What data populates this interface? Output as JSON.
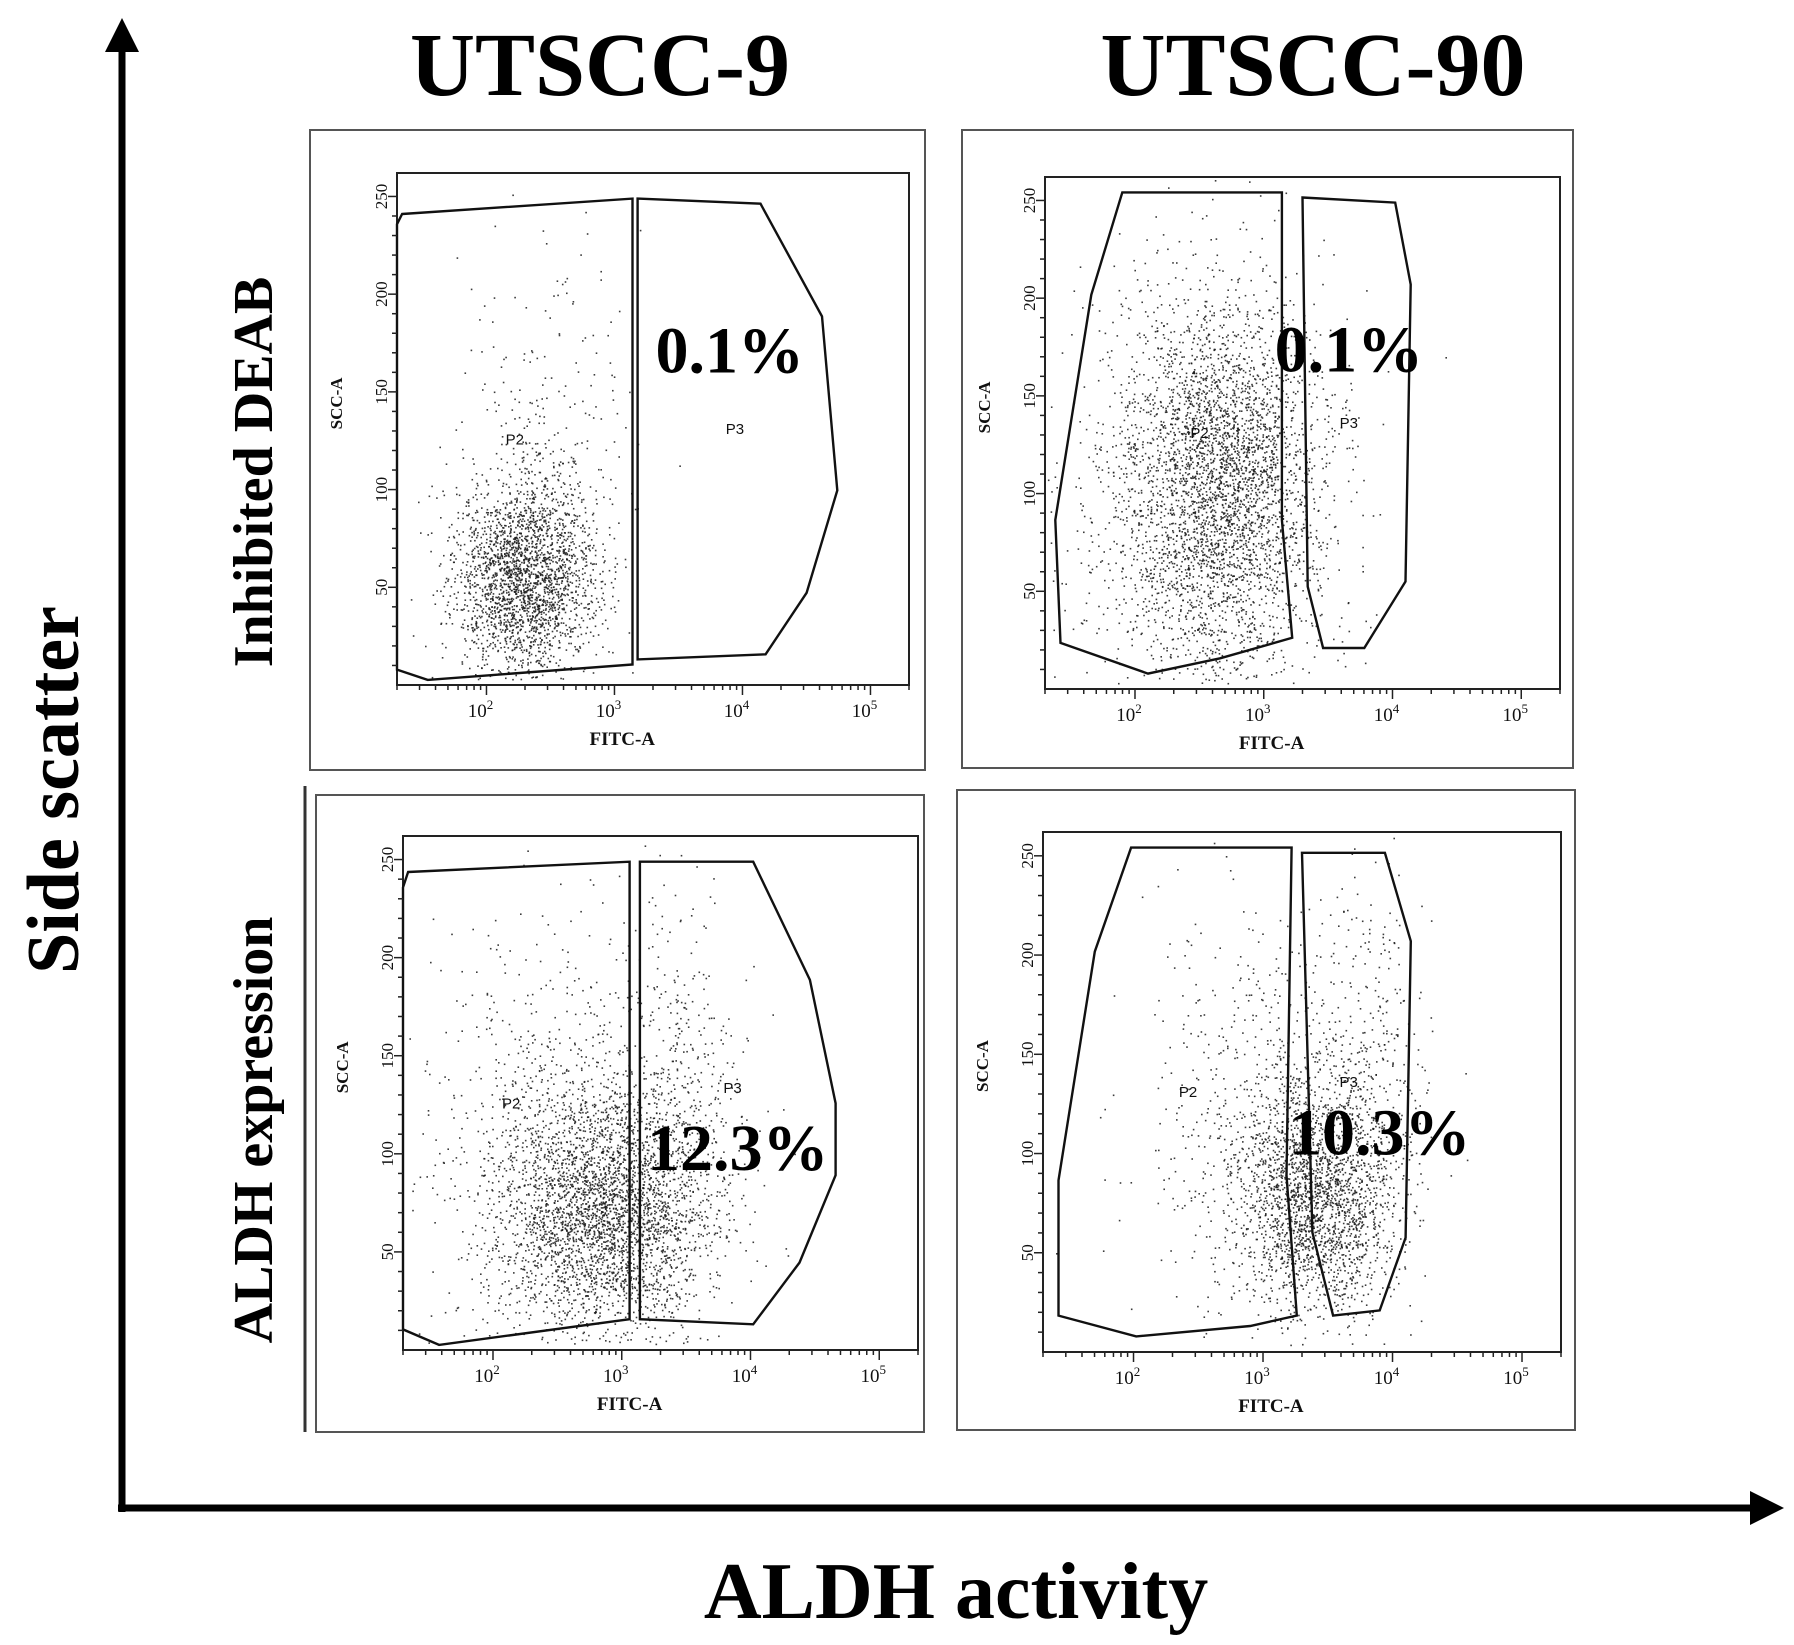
{
  "figure": {
    "column_titles": [
      "UTSCC-9",
      "UTSCC-90"
    ],
    "row_labels": [
      "Inhibited DEAB",
      "ALDH expression"
    ],
    "y_axis_title": "Side scatter",
    "x_axis_title": "ALDH activity",
    "colors": {
      "ink": "#000000",
      "dots": "#1a1a1a",
      "frame": "#555555"
    }
  },
  "chart_data": [
    {
      "type": "scatter",
      "panel": "UTSCC-9 / Inhibited DEAB",
      "xlabel": "FITC-A",
      "ylabel": "SCC-A",
      "x_scale": "log",
      "xlim": [
        20,
        200000
      ],
      "x_ticks": [
        "10^2",
        "10^3",
        "10^4",
        "10^5"
      ],
      "ylim": [
        0,
        262
      ],
      "y_ticks": [
        50,
        100,
        150,
        200,
        250
      ],
      "gates": [
        {
          "name": "P2"
        },
        {
          "name": "P3",
          "percent": "0.1%"
        }
      ],
      "populations": [
        {
          "center_x": 200,
          "center_y": 55,
          "spread_log_x": 0.28,
          "spread_y": 25,
          "count": 2400
        },
        {
          "center_x": 300,
          "center_y": 130,
          "spread_log_x": 0.35,
          "spread_y": 45,
          "count": 250
        }
      ]
    },
    {
      "type": "scatter",
      "panel": "UTSCC-90 / Inhibited DEAB",
      "xlabel": "FITC-A",
      "ylabel": "SCC-A",
      "x_scale": "log",
      "xlim": [
        20,
        200000
      ],
      "x_ticks": [
        "10^2",
        "10^3",
        "10^4",
        "10^5"
      ],
      "ylim": [
        0,
        262
      ],
      "y_ticks": [
        50,
        100,
        150,
        200,
        250
      ],
      "gates": [
        {
          "name": "P2"
        },
        {
          "name": "P3",
          "percent": "0.1%"
        }
      ],
      "populations": [
        {
          "center_x": 450,
          "center_y": 105,
          "spread_log_x": 0.38,
          "spread_y": 48,
          "count": 3200
        },
        {
          "center_x": 300,
          "center_y": 100,
          "spread_log_x": 0.55,
          "spread_y": 60,
          "count": 900
        }
      ]
    },
    {
      "type": "scatter",
      "panel": "UTSCC-9 / ALDH expression",
      "xlabel": "FITC-A",
      "ylabel": "SCC-A",
      "x_scale": "log",
      "xlim": [
        20,
        200000
      ],
      "x_ticks": [
        "10^2",
        "10^3",
        "10^4",
        "10^5"
      ],
      "ylim": [
        0,
        262
      ],
      "y_ticks": [
        50,
        100,
        150,
        200,
        250
      ],
      "gates": [
        {
          "name": "P2"
        },
        {
          "name": "P3",
          "percent": "12.3%"
        }
      ],
      "populations": [
        {
          "center_x": 700,
          "center_y": 70,
          "spread_log_x": 0.42,
          "spread_y": 32,
          "count": 3000
        },
        {
          "center_x": 400,
          "center_y": 110,
          "spread_log_x": 0.55,
          "spread_y": 55,
          "count": 900
        },
        {
          "center_x": 3000,
          "center_y": 120,
          "spread_log_x": 0.2,
          "spread_y": 55,
          "count": 350
        }
      ]
    },
    {
      "type": "scatter",
      "panel": "UTSCC-90 / ALDH expression",
      "xlabel": "FITC-A",
      "ylabel": "SCC-A",
      "x_scale": "log",
      "xlim": [
        20,
        200000
      ],
      "x_ticks": [
        "10^2",
        "10^3",
        "10^4",
        "10^5"
      ],
      "ylim": [
        0,
        262
      ],
      "y_ticks": [
        50,
        100,
        150,
        200,
        250
      ],
      "gates": [
        {
          "name": "P2"
        },
        {
          "name": "P3",
          "percent": "10.3%"
        }
      ],
      "populations": [
        {
          "center_x": 2500,
          "center_y": 80,
          "spread_log_x": 0.3,
          "spread_y": 30,
          "count": 2200
        },
        {
          "center_x": 1200,
          "center_y": 120,
          "spread_log_x": 0.5,
          "spread_y": 55,
          "count": 700
        },
        {
          "center_x": 7000,
          "center_y": 140,
          "spread_log_x": 0.2,
          "spread_y": 50,
          "count": 250
        }
      ]
    }
  ]
}
